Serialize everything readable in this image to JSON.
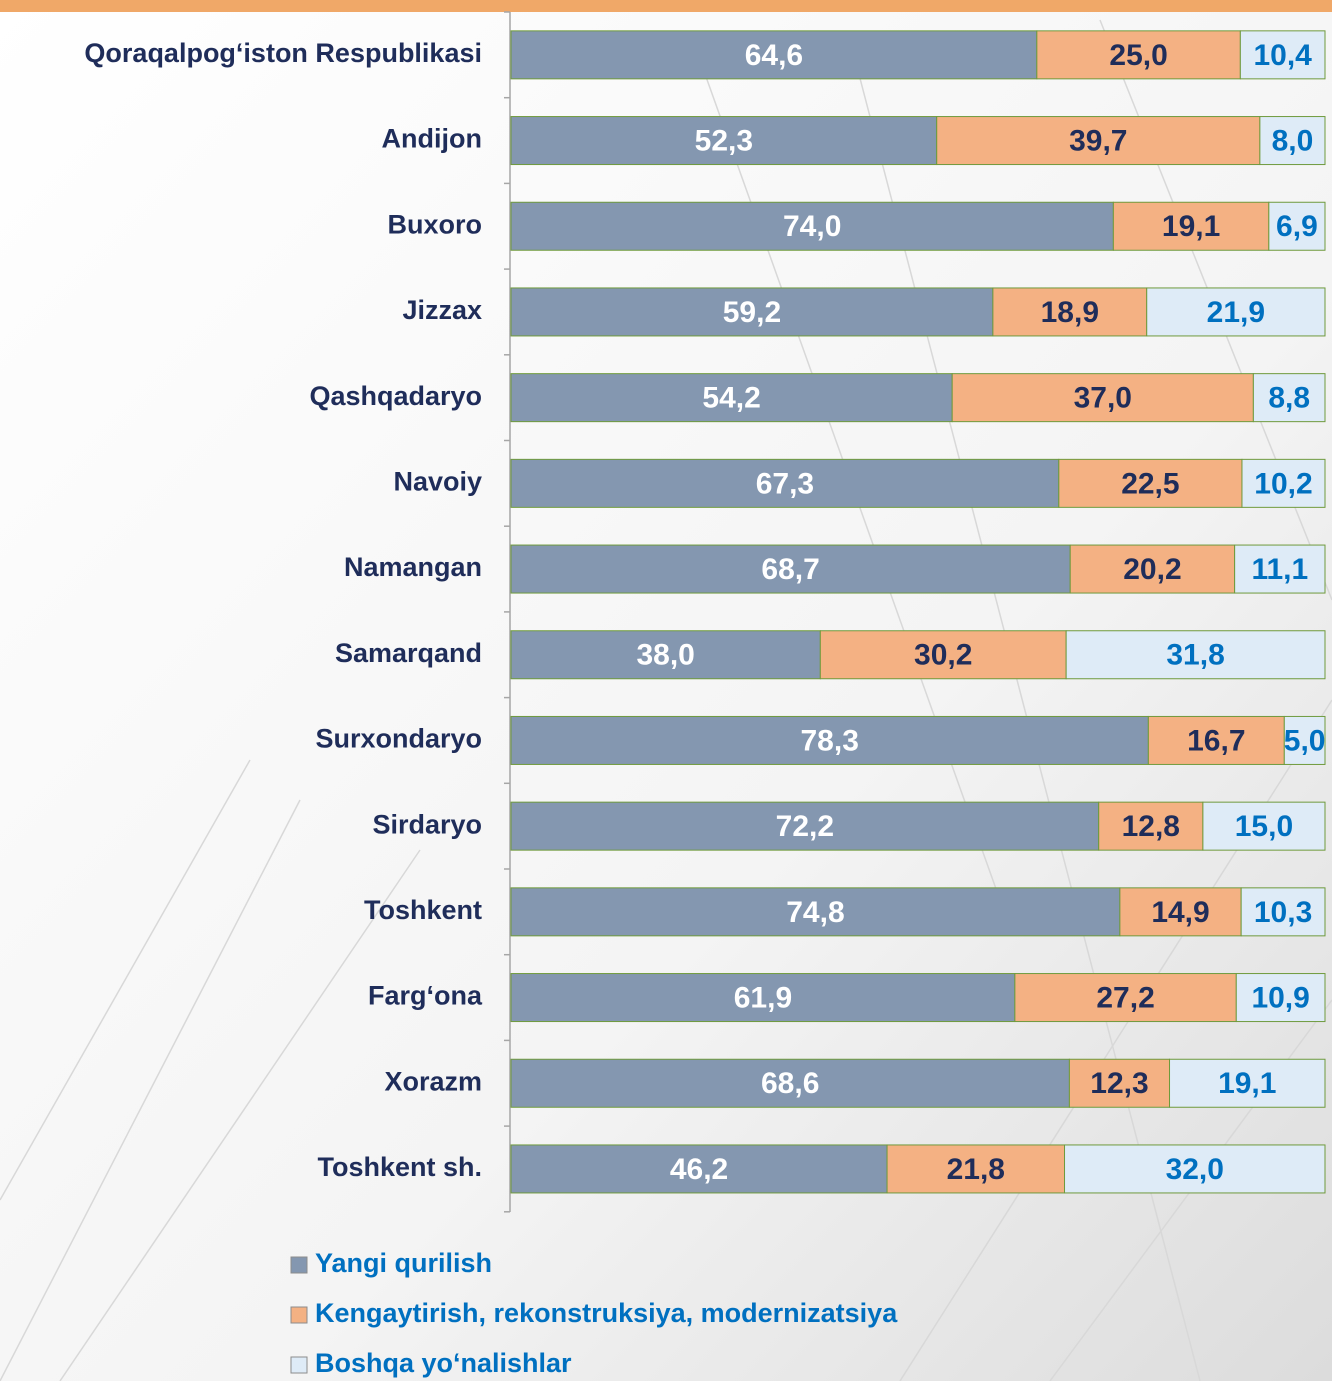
{
  "chart_data": {
    "type": "stacked-bar",
    "orientation": "horizontal",
    "xlim": [
      0,
      100
    ],
    "categories": [
      "Qoraqalpog‘iston Respublikasi",
      "Andijon",
      "Buxoro",
      "Jizzax",
      "Qashqadaryo",
      "Navoiy",
      "Namangan",
      "Samarqand",
      "Surxondaryo",
      "Sirdaryo",
      "Toshkent",
      "Farg‘ona",
      "Xorazm",
      "Toshkent sh."
    ],
    "series": [
      {
        "name": "Yangi qurilish",
        "color": "#8497b0",
        "label_color": "#ffffff",
        "values": [
          64.6,
          52.3,
          74.0,
          59.2,
          54.2,
          67.3,
          68.7,
          38.0,
          78.3,
          72.2,
          74.8,
          61.9,
          68.6,
          46.2
        ],
        "value_labels": [
          "64,6",
          "52,3",
          "74,0",
          "59,2",
          "54,2",
          "67,3",
          "68,7",
          "38,0",
          "78,3",
          "72,2",
          "74,8",
          "61,9",
          "68,6",
          "46,2"
        ]
      },
      {
        "name": "Kengaytirish, rekonstruksiya, modernizatsiya",
        "color": "#f4b183",
        "label_color": "#1f2d5a",
        "values": [
          25.0,
          39.7,
          19.1,
          18.9,
          37.0,
          22.5,
          20.2,
          30.2,
          16.7,
          12.8,
          14.9,
          27.2,
          12.3,
          21.8
        ],
        "value_labels": [
          "25,0",
          "39,7",
          "19,1",
          "18,9",
          "37,0",
          "22,5",
          "20,2",
          "30,2",
          "16,7",
          "12,8",
          "14,9",
          "27,2",
          "12,3",
          "21,8"
        ]
      },
      {
        "name": "Boshqa yo‘nalishlar",
        "color": "#deebf7",
        "label_color": "#0070c0",
        "values": [
          10.4,
          8.0,
          6.9,
          21.9,
          8.8,
          10.2,
          11.1,
          31.8,
          5.0,
          15.0,
          10.3,
          10.9,
          19.1,
          32.0
        ],
        "value_labels": [
          "10,4",
          "8,0",
          "6,9",
          "21,9",
          "8,8",
          "10,2",
          "11,1",
          "31,8",
          "5,0",
          "15,0",
          "10,3",
          "10,9",
          "19,1",
          "32,0"
        ]
      }
    ],
    "legend": "bottom-left"
  }
}
